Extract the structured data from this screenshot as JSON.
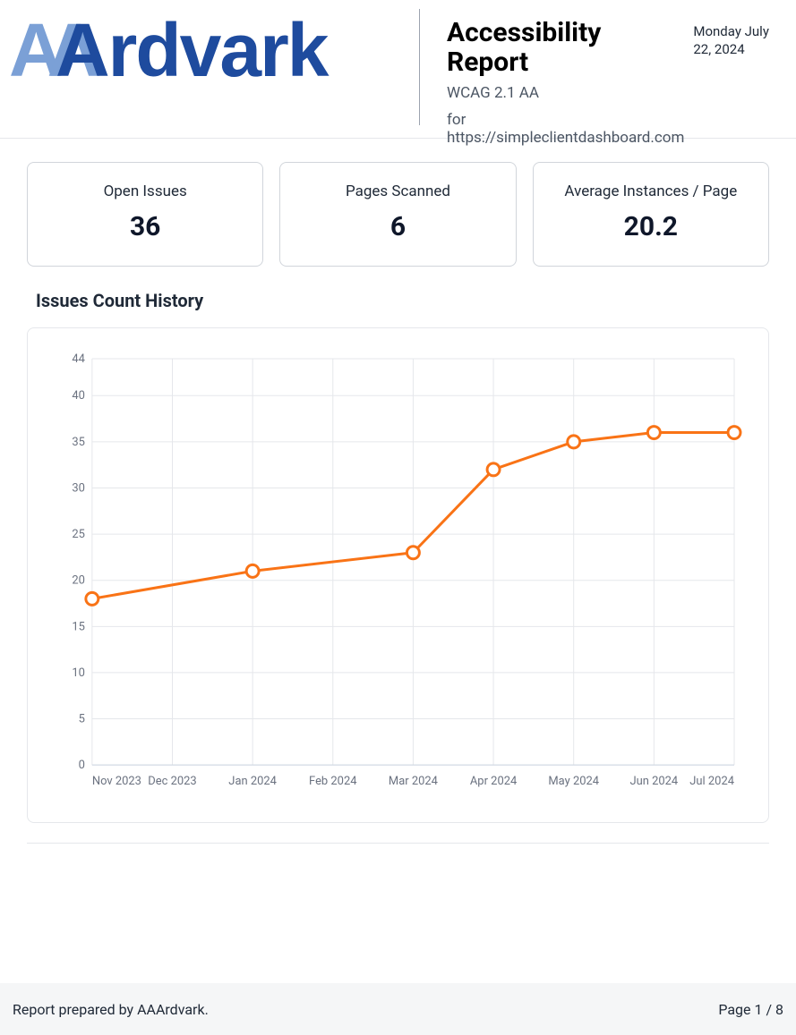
{
  "header": {
    "logo_text": "Ardvark",
    "logo_prefix": "AA",
    "title": "Accessibility Report",
    "subtitle": "WCAG 2.1 AA",
    "url_prefix": "for ",
    "url": "https://simpleclientdashboard.com",
    "date": "Monday July 22, 2024"
  },
  "stats": [
    {
      "label": "Open Issues",
      "value": "36"
    },
    {
      "label": "Pages Scanned",
      "value": "6"
    },
    {
      "label": "Average Instances / Page",
      "value": "20.2"
    }
  ],
  "chart": {
    "title": "Issues Count History",
    "type": "line",
    "x_labels": [
      "Nov 2023",
      "Dec 2023",
      "Jan 2024",
      "Feb 2024",
      "Mar 2024",
      "Apr 2024",
      "May 2024",
      "Jun 2024",
      "Jul 2024"
    ],
    "y_ticks": [
      0,
      5,
      10,
      15,
      20,
      25,
      30,
      35,
      40,
      44
    ],
    "ylim": [
      0,
      44
    ],
    "data_points": [
      {
        "x": "Nov 2023",
        "y": 18
      },
      {
        "x": "Jan 2024",
        "y": 21
      },
      {
        "x": "Mar 2024",
        "y": 23
      },
      {
        "x": "Apr 2024",
        "y": 32
      },
      {
        "x": "May 2024",
        "y": 35
      },
      {
        "x": "Jun 2024",
        "y": 36
      },
      {
        "x": "Jul 2024",
        "y": 36
      }
    ],
    "line_color": "#f97316",
    "marker_fill": "#ffffff",
    "marker_stroke": "#f97316",
    "marker_radius": 7,
    "marker_stroke_width": 3,
    "line_width": 3,
    "grid_color": "#e5e7eb",
    "axis_label_color": "#6b7280",
    "axis_label_fontsize": 13,
    "background_color": "#ffffff"
  },
  "footer": {
    "prepared_by": "Report prepared by AAArdvark.",
    "page_info": "Page 1 / 8"
  },
  "colors": {
    "logo_dark": "#1e4b9e",
    "logo_light": "#7ba0d6"
  }
}
